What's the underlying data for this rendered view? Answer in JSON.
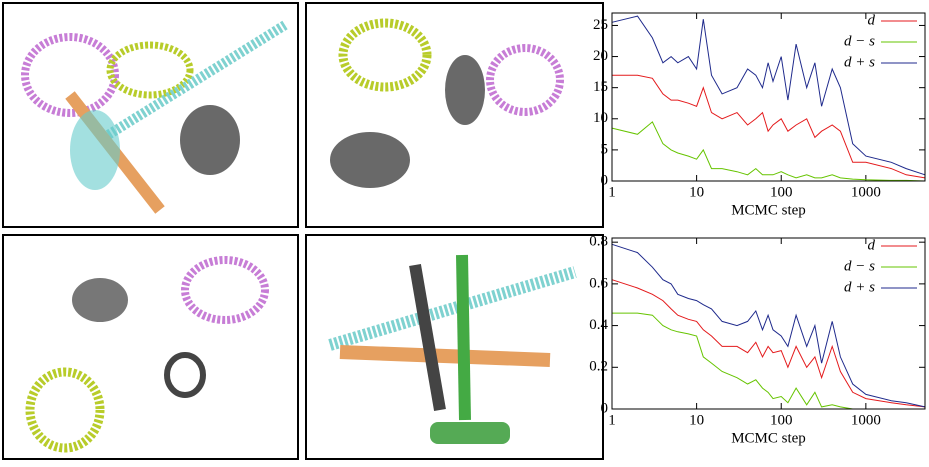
{
  "chart_data": [
    {
      "type": "line",
      "x_label": "MCMC step",
      "xlog": true,
      "xlim": [
        1,
        5000
      ],
      "xticks": [
        1,
        10,
        100,
        1000
      ],
      "ylim": [
        0,
        27
      ],
      "yticks": [
        0,
        5,
        10,
        15,
        20,
        25
      ],
      "legend": "upper right",
      "x": [
        1,
        2,
        3,
        4,
        5,
        6,
        8,
        10,
        12,
        15,
        20,
        30,
        40,
        50,
        60,
        70,
        80,
        100,
        120,
        150,
        200,
        250,
        300,
        400,
        500,
        700,
        1000,
        2000,
        3000,
        5000
      ],
      "series": [
        {
          "name": "d",
          "color": "#e41a1c",
          "values": [
            17,
            17,
            16.5,
            14,
            13,
            13,
            12.5,
            12,
            15,
            11,
            10,
            11,
            9,
            10,
            11,
            8,
            9,
            10,
            8,
            9,
            10,
            7,
            8,
            9,
            8,
            3,
            3,
            2,
            1,
            0.5
          ]
        },
        {
          "name": "d − s",
          "color": "#66c400",
          "values": [
            8.5,
            7.5,
            9.5,
            6,
            5,
            4.5,
            4,
            3.5,
            5,
            2,
            2,
            1.5,
            1,
            2,
            1,
            1,
            1,
            1.5,
            1,
            0.5,
            1,
            0.5,
            0.5,
            1,
            0.5,
            0.3,
            0.2,
            0.1,
            0.1,
            0
          ]
        },
        {
          "name": "d + s",
          "color": "#1f2a8c",
          "values": [
            25.5,
            26.5,
            23,
            19,
            20,
            19,
            20,
            18,
            26,
            17,
            14,
            15,
            18,
            17,
            15,
            19,
            16,
            20,
            13,
            22,
            15,
            19,
            12,
            18,
            15,
            6,
            4,
            3,
            2,
            1
          ]
        }
      ]
    },
    {
      "type": "line",
      "x_label": "MCMC step",
      "xlog": true,
      "xlim": [
        1,
        5000
      ],
      "xticks": [
        1,
        10,
        100,
        1000
      ],
      "ylim": [
        0,
        0.82
      ],
      "yticks": [
        0,
        0.2,
        0.4,
        0.6,
        0.8
      ],
      "legend": "upper right",
      "x": [
        1,
        2,
        3,
        4,
        5,
        6,
        8,
        10,
        12,
        15,
        20,
        30,
        40,
        50,
        60,
        70,
        80,
        100,
        120,
        150,
        200,
        250,
        300,
        400,
        500,
        700,
        1000,
        2000,
        3000,
        5000
      ],
      "series": [
        {
          "name": "d",
          "color": "#e41a1c",
          "values": [
            0.62,
            0.58,
            0.55,
            0.52,
            0.48,
            0.45,
            0.43,
            0.42,
            0.38,
            0.35,
            0.3,
            0.3,
            0.27,
            0.32,
            0.25,
            0.3,
            0.27,
            0.28,
            0.2,
            0.3,
            0.2,
            0.25,
            0.15,
            0.3,
            0.18,
            0.08,
            0.05,
            0.03,
            0.02,
            0.01
          ]
        },
        {
          "name": "d − s",
          "color": "#66c400",
          "values": [
            0.46,
            0.46,
            0.45,
            0.4,
            0.38,
            0.37,
            0.36,
            0.35,
            0.25,
            0.22,
            0.18,
            0.15,
            0.12,
            0.14,
            0.1,
            0.08,
            0.05,
            0.06,
            0.03,
            0.1,
            0.02,
            0.08,
            0.01,
            0.02,
            0.01,
            0,
            0,
            0,
            0,
            0
          ]
        },
        {
          "name": "d + s",
          "color": "#1f2a8c",
          "values": [
            0.79,
            0.75,
            0.68,
            0.62,
            0.6,
            0.55,
            0.53,
            0.52,
            0.5,
            0.48,
            0.42,
            0.4,
            0.42,
            0.47,
            0.38,
            0.45,
            0.38,
            0.35,
            0.3,
            0.45,
            0.3,
            0.4,
            0.22,
            0.42,
            0.25,
            0.12,
            0.07,
            0.04,
            0.03,
            0.01
          ]
        }
      ]
    }
  ]
}
